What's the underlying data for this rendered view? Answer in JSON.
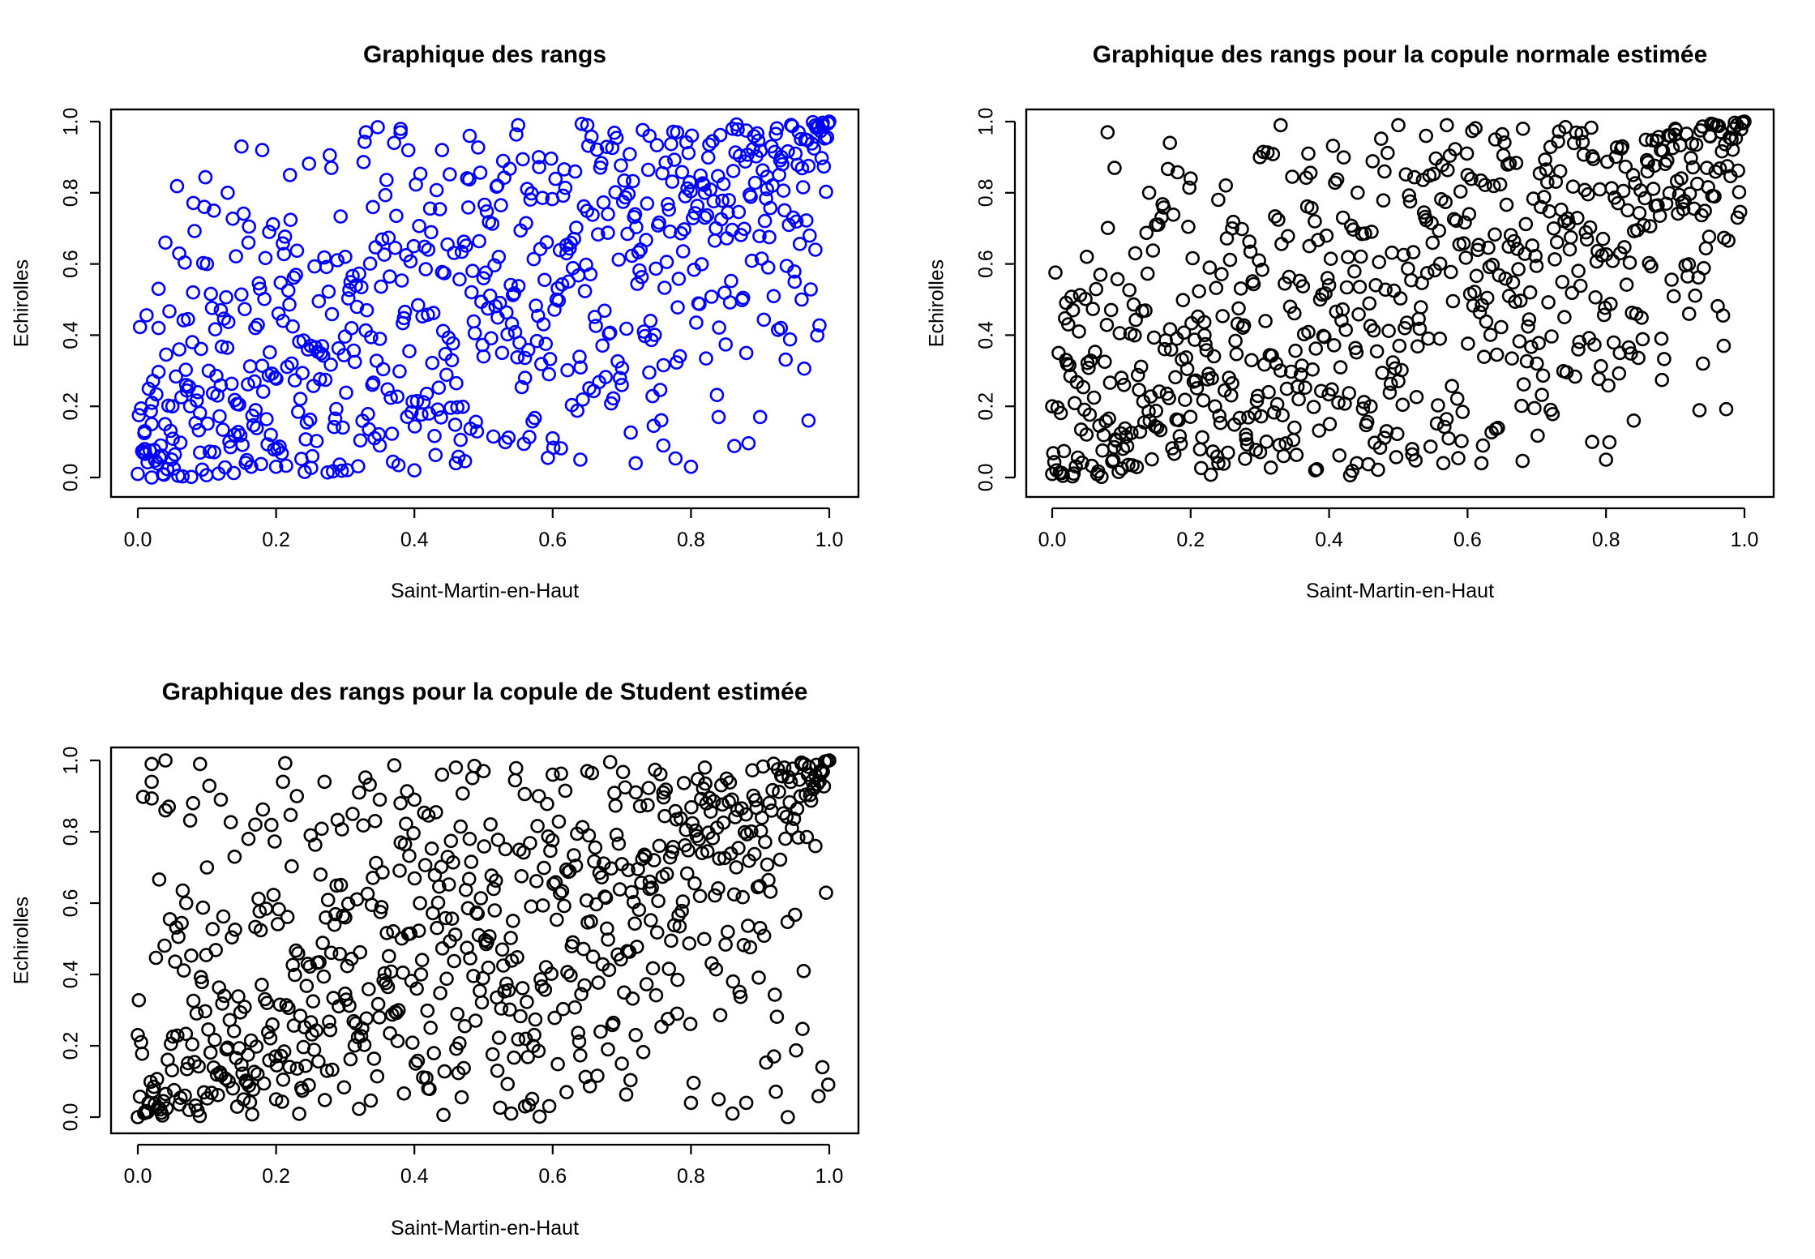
{
  "chart_data": [
    {
      "type": "scatter",
      "title": "Graphique des rangs",
      "xlabel": "Saint-Martin-en-Haut",
      "ylabel": "Echirolles",
      "xlim": [
        0,
        1
      ],
      "ylim": [
        0,
        1
      ],
      "x_ticks": [
        "0.0",
        "0.2",
        "0.4",
        "0.6",
        "0.8",
        "1.0"
      ],
      "y_ticks": [
        "0.0",
        "0.2",
        "0.4",
        "0.6",
        "0.8",
        "1.0"
      ],
      "grid": false,
      "marker": "open-circle",
      "point_color": "#0000ff",
      "n_points": 700,
      "dependence": {
        "rho": 0.6,
        "df": 0,
        "seed": 11
      },
      "series": [
        {
          "points": [
            [
              0.0,
              0.01
            ],
            [
              0.01,
              0.13
            ],
            [
              0.01,
              0.08
            ],
            [
              0.02,
              0.0
            ],
            [
              0.02,
              0.15
            ],
            [
              0.03,
              0.42
            ],
            [
              0.03,
              0.53
            ],
            [
              0.04,
              0.66
            ],
            [
              0.05,
              0.2
            ],
            [
              0.06,
              0.36
            ],
            [
              0.07,
              0.26
            ],
            [
              0.08,
              0.52
            ],
            [
              0.09,
              0.07
            ],
            [
              0.1,
              0.6
            ],
            [
              0.11,
              0.75
            ],
            [
              0.12,
              0.47
            ],
            [
              0.13,
              0.8
            ],
            [
              0.14,
              0.12
            ],
            [
              0.15,
              0.93
            ],
            [
              0.16,
              0.66
            ],
            [
              0.17,
              0.42
            ],
            [
              0.18,
              0.92
            ],
            [
              0.19,
              0.69
            ],
            [
              0.2,
              0.03
            ],
            [
              0.21,
              0.44
            ],
            [
              0.22,
              0.85
            ],
            [
              0.25,
              0.37
            ],
            [
              0.28,
              0.87
            ],
            [
              0.3,
              0.62
            ],
            [
              0.33,
              0.97
            ],
            [
              0.34,
              0.76
            ],
            [
              0.35,
              0.09
            ],
            [
              0.38,
              0.97
            ],
            [
              0.4,
              0.02
            ],
            [
              0.42,
              0.64
            ],
            [
              0.44,
              0.92
            ],
            [
              0.46,
              0.04
            ],
            [
              0.48,
              0.96
            ],
            [
              0.5,
              0.34
            ],
            [
              0.52,
              0.82
            ],
            [
              0.55,
              0.99
            ],
            [
              0.56,
              0.28
            ],
            [
              0.58,
              0.9
            ],
            [
              0.6,
              0.11
            ],
            [
              0.62,
              0.63
            ],
            [
              0.64,
              0.05
            ],
            [
              0.65,
              0.99
            ],
            [
              0.68,
              0.74
            ],
            [
              0.7,
              0.26
            ],
            [
              0.72,
              0.04
            ],
            [
              0.74,
              0.96
            ],
            [
              0.76,
              0.09
            ],
            [
              0.78,
              0.97
            ],
            [
              0.8,
              0.03
            ],
            [
              0.82,
              0.73
            ],
            [
              0.84,
              0.17
            ],
            [
              0.86,
              0.98
            ],
            [
              0.88,
              0.35
            ],
            [
              0.9,
              0.17
            ],
            [
              0.91,
              0.81
            ],
            [
              0.93,
              0.42
            ],
            [
              0.95,
              0.55
            ],
            [
              0.96,
              0.5
            ],
            [
              0.97,
              0.16
            ],
            [
              0.98,
              0.64
            ],
            [
              0.99,
              0.99
            ],
            [
              1.0,
              1.0
            ]
          ]
        }
      ]
    },
    {
      "type": "scatter",
      "title": "Graphique des rangs pour la copule normale estimée",
      "xlabel": "Saint-Martin-en-Haut",
      "ylabel": "Echirolles",
      "xlim": [
        0,
        1
      ],
      "ylim": [
        0,
        1
      ],
      "x_ticks": [
        "0.0",
        "0.2",
        "0.4",
        "0.6",
        "0.8",
        "1.0"
      ],
      "y_ticks": [
        "0.0",
        "0.2",
        "0.4",
        "0.6",
        "0.8",
        "1.0"
      ],
      "grid": false,
      "marker": "open-circle",
      "point_color": "#000000",
      "n_points": 700,
      "dependence": {
        "rho": 0.6,
        "df": 0,
        "seed": 27
      },
      "series": [
        {
          "points": [
            [
              0.0,
              0.01
            ],
            [
              0.0,
              0.2
            ],
            [
              0.02,
              0.33
            ],
            [
              0.03,
              0.47
            ],
            [
              0.05,
              0.62
            ],
            [
              0.08,
              0.97
            ],
            [
              0.09,
              0.87
            ],
            [
              0.1,
              0.28
            ],
            [
              0.12,
              0.63
            ],
            [
              0.14,
              0.8
            ],
            [
              0.15,
              0.71
            ],
            [
              0.17,
              0.94
            ],
            [
              0.18,
              0.39
            ],
            [
              0.2,
              0.84
            ],
            [
              0.22,
              0.4
            ],
            [
              0.24,
              0.04
            ],
            [
              0.26,
              0.7
            ],
            [
              0.28,
              0.12
            ],
            [
              0.3,
              0.9
            ],
            [
              0.33,
              0.99
            ],
            [
              0.35,
              0.14
            ],
            [
              0.37,
              0.91
            ],
            [
              0.38,
              0.02
            ],
            [
              0.4,
              0.54
            ],
            [
              0.42,
              0.73
            ],
            [
              0.44,
              0.04
            ],
            [
              0.46,
              0.2
            ],
            [
              0.48,
              0.86
            ],
            [
              0.5,
              0.99
            ],
            [
              0.52,
              0.08
            ],
            [
              0.54,
              0.96
            ],
            [
              0.56,
              0.39
            ],
            [
              0.57,
              0.99
            ],
            [
              0.6,
              0.85
            ],
            [
              0.62,
              0.04
            ],
            [
              0.64,
              0.95
            ],
            [
              0.66,
              0.51
            ],
            [
              0.68,
              0.98
            ],
            [
              0.7,
              0.32
            ],
            [
              0.72,
              0.19
            ],
            [
              0.74,
              0.72
            ],
            [
              0.76,
              0.36
            ],
            [
              0.78,
              0.1
            ],
            [
              0.8,
              0.05
            ],
            [
              0.82,
              0.35
            ],
            [
              0.84,
              0.16
            ],
            [
              0.86,
              0.86
            ],
            [
              0.88,
              0.39
            ],
            [
              0.9,
              0.98
            ],
            [
              0.92,
              0.46
            ],
            [
              0.94,
              0.32
            ],
            [
              0.95,
              0.96
            ],
            [
              0.97,
              0.37
            ],
            [
              0.99,
              0.73
            ],
            [
              1.0,
              1.0
            ]
          ]
        }
      ]
    },
    {
      "type": "scatter",
      "title": "Graphique des rangs pour la copule de Student estimée",
      "xlabel": "Saint-Martin-en-Haut",
      "ylabel": "Echirolles",
      "xlim": [
        0,
        1
      ],
      "ylim": [
        0,
        1
      ],
      "x_ticks": [
        "0.0",
        "0.2",
        "0.4",
        "0.6",
        "0.8",
        "1.0"
      ],
      "y_ticks": [
        "0.0",
        "0.2",
        "0.4",
        "0.6",
        "0.8",
        "1.0"
      ],
      "grid": false,
      "marker": "open-circle",
      "point_color": "#000000",
      "n_points": 700,
      "dependence": {
        "rho": 0.6,
        "df": 3,
        "seed": 53
      },
      "series": [
        {
          "points": [
            [
              0.0,
              0.23
            ],
            [
              0.0,
              0.0
            ],
            [
              0.02,
              0.99
            ],
            [
              0.02,
              0.94
            ],
            [
              0.04,
              1.0
            ],
            [
              0.04,
              0.86
            ],
            [
              0.07,
              0.6
            ],
            [
              0.08,
              0.88
            ],
            [
              0.09,
              0.99
            ],
            [
              0.1,
              0.7
            ],
            [
              0.12,
              0.89
            ],
            [
              0.14,
              0.73
            ],
            [
              0.16,
              0.78
            ],
            [
              0.17,
              0.82
            ],
            [
              0.2,
              0.05
            ],
            [
              0.21,
              0.94
            ],
            [
              0.23,
              0.9
            ],
            [
              0.25,
              0.79
            ],
            [
              0.27,
              0.94
            ],
            [
              0.3,
              0.56
            ],
            [
              0.32,
              0.91
            ],
            [
              0.35,
              0.89
            ],
            [
              0.38,
              0.88
            ],
            [
              0.4,
              0.89
            ],
            [
              0.42,
              0.08
            ],
            [
              0.44,
              0.96
            ],
            [
              0.46,
              0.98
            ],
            [
              0.48,
              0.78
            ],
            [
              0.5,
              0.97
            ],
            [
              0.52,
              0.13
            ],
            [
              0.54,
              0.01
            ],
            [
              0.56,
              0.03
            ],
            [
              0.58,
              0.9
            ],
            [
              0.6,
              0.96
            ],
            [
              0.62,
              0.07
            ],
            [
              0.65,
              0.97
            ],
            [
              0.68,
              0.19
            ],
            [
              0.7,
              0.15
            ],
            [
              0.72,
              0.23
            ],
            [
              0.74,
              0.64
            ],
            [
              0.76,
              0.91
            ],
            [
              0.78,
              0.29
            ],
            [
              0.8,
              0.04
            ],
            [
              0.82,
              0.98
            ],
            [
              0.84,
              0.05
            ],
            [
              0.86,
              0.01
            ],
            [
              0.88,
              0.04
            ],
            [
              0.9,
              0.53
            ],
            [
              0.92,
              0.17
            ],
            [
              0.94,
              0.0
            ],
            [
              0.96,
              0.99
            ],
            [
              0.98,
              0.76
            ],
            [
              0.99,
              0.14
            ],
            [
              1.0,
              1.0
            ]
          ]
        }
      ]
    }
  ]
}
